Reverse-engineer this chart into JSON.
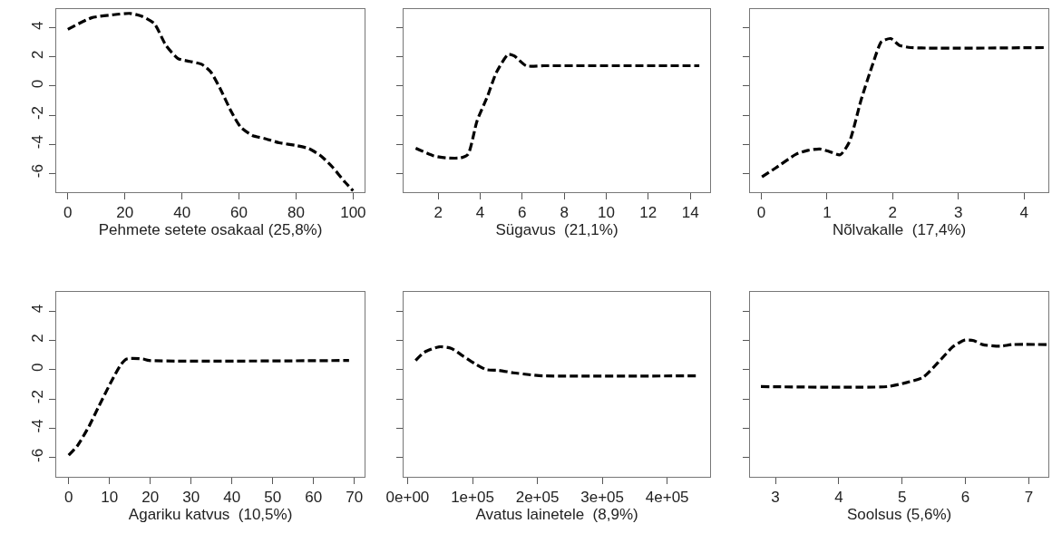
{
  "chart_data": [
    {
      "type": "line",
      "xlabel": "Pehmete setete osakaal (25,8%)",
      "xlim": [
        -4,
        104
      ],
      "xticks": [
        0,
        20,
        40,
        60,
        80,
        100
      ],
      "ylim": [
        -7.3,
        5.3
      ],
      "yticks": [
        -6,
        -4,
        -2,
        0,
        2,
        4
      ],
      "grid": false,
      "line_style": "dashed",
      "series": [
        {
          "color": "#000000",
          "x": [
            0,
            8.3,
            15.6,
            21.8,
            26,
            30.3,
            34.4,
            38.6,
            42.7,
            46.9,
            50,
            53.2,
            57.4,
            60.5,
            64.7,
            68.9,
            74.1,
            80.4,
            84.5,
            88.7,
            92.9,
            97.1,
            100
          ],
          "values": [
            3.9,
            4.7,
            4.9,
            5.0,
            4.8,
            4.3,
            2.8,
            1.9,
            1.7,
            1.5,
            1.0,
            -0.1,
            -1.8,
            -2.8,
            -3.4,
            -3.6,
            -3.9,
            -4.1,
            -4.3,
            -4.8,
            -5.6,
            -6.6,
            -7.2
          ]
        }
      ]
    },
    {
      "type": "line",
      "xlabel": "Sügavus  (21,1%)",
      "xlim": [
        0.36,
        14.94
      ],
      "xticks": [
        2,
        4,
        6,
        8,
        10,
        12,
        14
      ],
      "ylim": [
        -7.3,
        5.3
      ],
      "yticks": [
        -6,
        -4,
        -2,
        0,
        2,
        4
      ],
      "tick_labels": "x",
      "grid": false,
      "line_style": "dashed",
      "series": [
        {
          "color": "#000000",
          "x": [
            0.93,
            1.79,
            2.36,
            3.07,
            3.42,
            3.85,
            4.34,
            4.77,
            5.34,
            5.62,
            6.19,
            7.04,
            14.43
          ],
          "values": [
            -4.27,
            -4.8,
            -4.94,
            -4.94,
            -4.7,
            -2.4,
            -0.73,
            0.94,
            2.19,
            2.08,
            1.4,
            1.4,
            1.4
          ]
        }
      ]
    },
    {
      "type": "line",
      "xlabel": "Nõlvakalle  (17,4%)",
      "xlim": [
        -0.17,
        4.37
      ],
      "xticks": [
        0,
        1,
        2,
        3,
        4
      ],
      "ylim": [
        -7.3,
        5.3
      ],
      "yticks": [
        -6,
        -4,
        -2,
        0,
        2,
        4
      ],
      "tick_labels": "x",
      "grid": false,
      "line_style": "dashed",
      "series": [
        {
          "color": "#000000",
          "x": [
            0.01,
            0.22,
            0.53,
            0.71,
            0.89,
            1.02,
            1.2,
            1.34,
            1.52,
            1.7,
            1.83,
            1.97,
            2.1,
            2.28,
            4.3
          ],
          "values": [
            -6.25,
            -5.63,
            -4.69,
            -4.42,
            -4.33,
            -4.48,
            -4.73,
            -3.85,
            -0.94,
            1.56,
            3.06,
            3.27,
            2.81,
            2.65,
            2.65
          ]
        }
      ]
    },
    {
      "type": "line",
      "xlabel": "Agariku katvus  (10,5%)",
      "xlim": [
        -3,
        72.5
      ],
      "xticks": [
        0,
        10,
        20,
        30,
        40,
        50,
        60,
        70
      ],
      "ylim": [
        -7.3,
        5.3
      ],
      "yticks": [
        -6,
        -4,
        -2,
        0,
        2,
        4
      ],
      "grid": false,
      "line_style": "dashed",
      "series": [
        {
          "color": "#000000",
          "x": [
            0,
            2.1,
            5,
            7.2,
            10.2,
            12.7,
            14.2,
            18.2,
            19.7,
            68.7
          ],
          "values": [
            -5.83,
            -5.2,
            -3.85,
            -2.6,
            -0.94,
            0.31,
            0.73,
            0.73,
            0.63,
            0.63
          ]
        }
      ]
    },
    {
      "type": "line",
      "xlabel": "Avatus lainetele  (8,9%)",
      "xlim": [
        -6000,
        466000
      ],
      "xticks": [
        {
          "value": 0,
          "label": "0e+00"
        },
        {
          "value": 100000,
          "label": "1e+05"
        },
        {
          "value": 200000,
          "label": "2e+05"
        },
        {
          "value": 300000,
          "label": "3e+05"
        },
        {
          "value": 400000,
          "label": "4e+05"
        }
      ],
      "ylim": [
        -7.3,
        5.3
      ],
      "yticks": [
        -6,
        -4,
        -2,
        0,
        2,
        4
      ],
      "tick_labels": "x",
      "grid": false,
      "line_style": "dashed",
      "series": [
        {
          "color": "#000000",
          "x": [
            12300,
            25900,
            48700,
            66900,
            85100,
            103300,
            121500,
            139700,
            162500,
            189800,
            208000,
            449100
          ],
          "values": [
            0.63,
            1.19,
            1.56,
            1.46,
            0.94,
            0.42,
            0.0,
            -0.04,
            -0.21,
            -0.35,
            -0.42,
            -0.42
          ]
        }
      ]
    },
    {
      "type": "line",
      "xlabel": "Soolsus (5,6%)",
      "xlim": [
        2.6,
        7.31
      ],
      "xticks": [
        3,
        4,
        5,
        6,
        7
      ],
      "ylim": [
        -7.3,
        5.3
      ],
      "yticks": [
        -6,
        -4,
        -2,
        0,
        2,
        4
      ],
      "tick_labels": "x",
      "grid": false,
      "line_style": "dashed",
      "series": [
        {
          "color": "#000000",
          "x": [
            2.77,
            4.77,
            5.05,
            5.33,
            5.62,
            5.8,
            5.99,
            6.13,
            6.27,
            6.55,
            6.74,
            7.28
          ],
          "values": [
            -1.15,
            -1.15,
            -0.9,
            -0.52,
            0.73,
            1.56,
            2.02,
            1.98,
            1.71,
            1.6,
            1.71,
            1.71
          ]
        }
      ]
    }
  ]
}
